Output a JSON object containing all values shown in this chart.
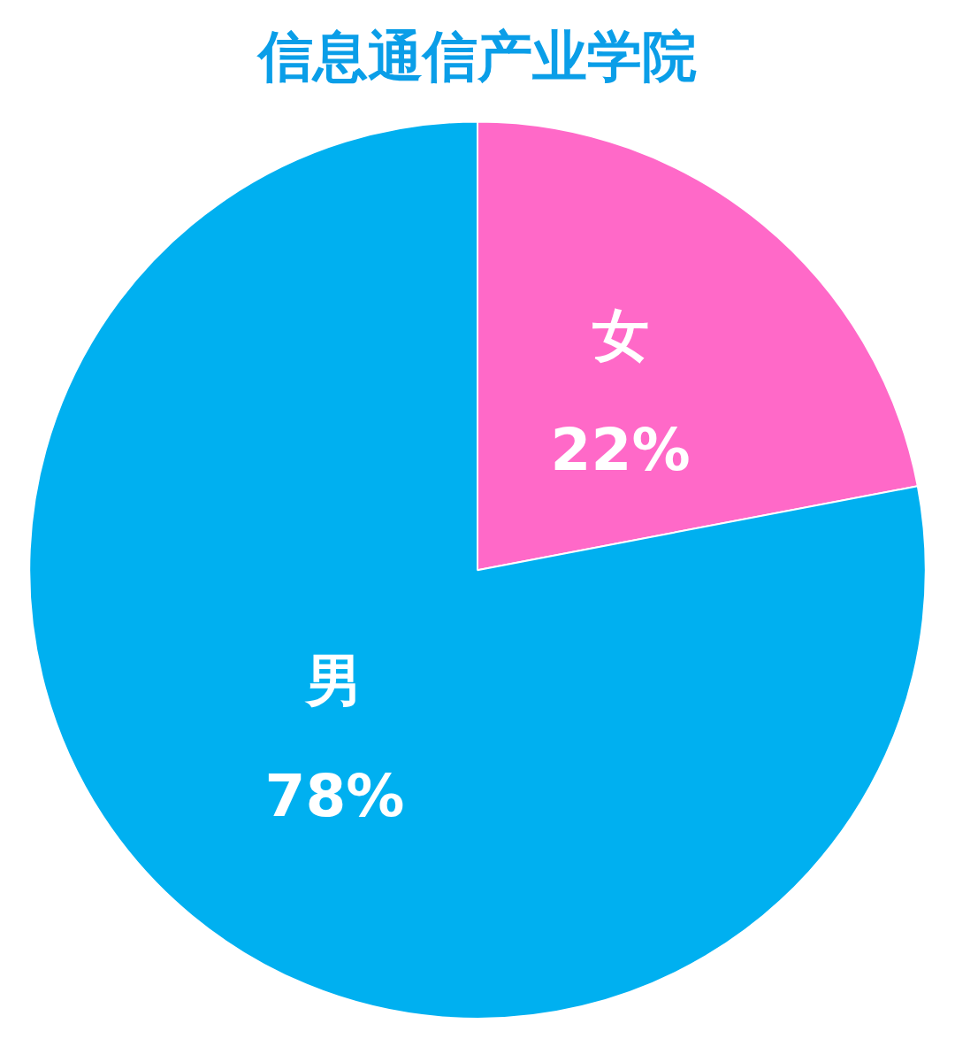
{
  "chart_data": {
    "type": "pie",
    "title": "信息通信产业学院",
    "categories": [
      "女",
      "男"
    ],
    "values": [
      22,
      78
    ],
    "value_labels": [
      "22%",
      "78%"
    ],
    "colors": [
      "#ff69c8",
      "#00b0f0"
    ],
    "legend": false
  }
}
